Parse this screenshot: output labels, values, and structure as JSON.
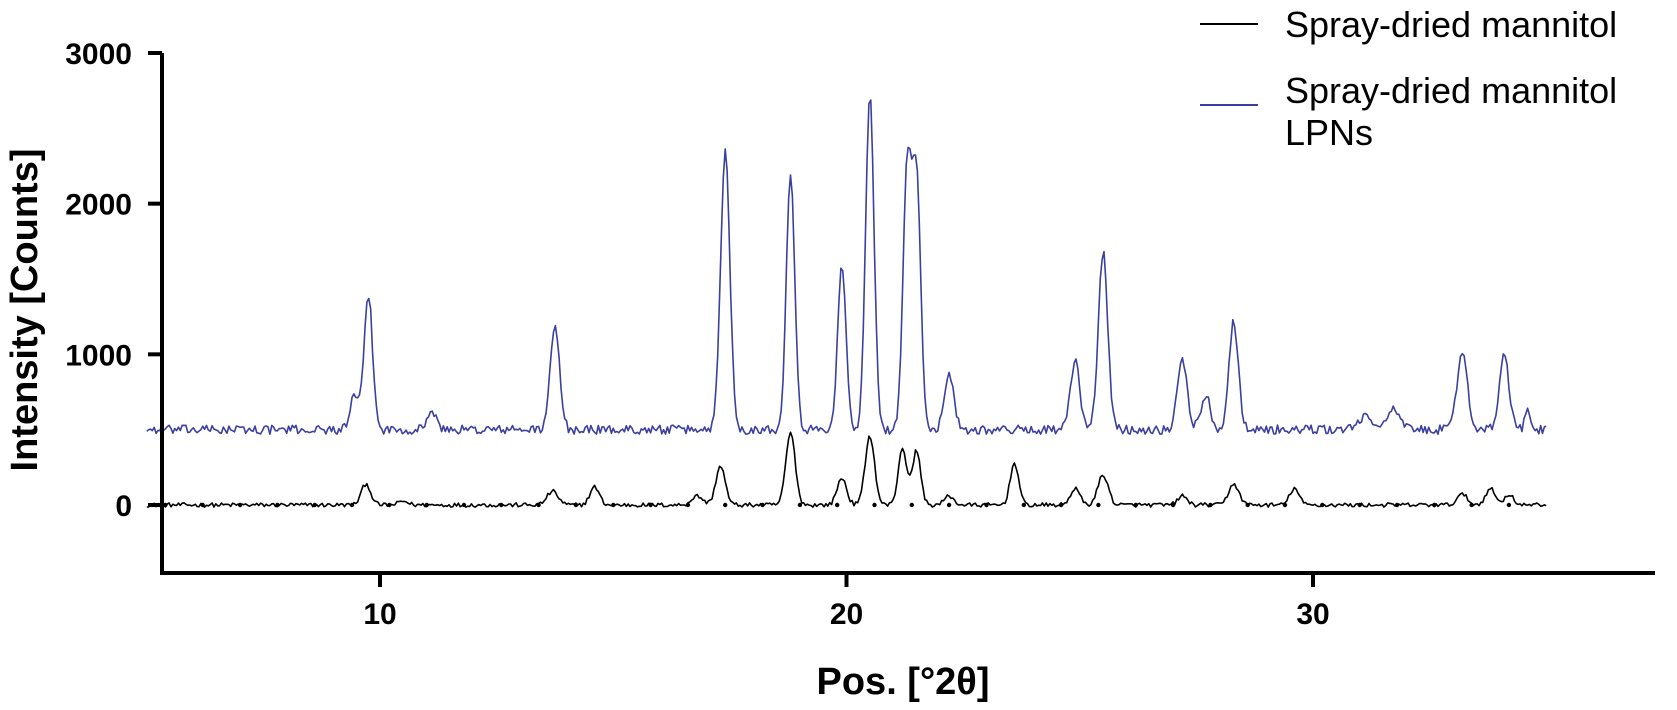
{
  "chart_data": {
    "type": "line",
    "title": "",
    "xlabel": "Pos. [°2θ]",
    "ylabel": "Intensity [Counts]",
    "xlim": [
      5,
      35
    ],
    "ylim": [
      -200,
      3000
    ],
    "xticks": [
      10,
      20,
      30
    ],
    "yticks": [
      0,
      1000,
      2000,
      3000
    ],
    "grid": false,
    "legend": "top-right",
    "colors": {
      "blue": "#3b3fa0",
      "black": "#000000"
    },
    "series": [
      {
        "name": "Spray-dried mannitol",
        "color": "#000000",
        "baseline": 0,
        "noise": 14,
        "peaks": [
          [
            9.7,
            140,
            0.1
          ],
          [
            10.5,
            25,
            0.1
          ],
          [
            13.7,
            90,
            0.12
          ],
          [
            14.6,
            120,
            0.1
          ],
          [
            16.8,
            60,
            0.12
          ],
          [
            17.3,
            260,
            0.1
          ],
          [
            18.8,
            480,
            0.1
          ],
          [
            19.9,
            180,
            0.1
          ],
          [
            20.5,
            460,
            0.1
          ],
          [
            21.2,
            380,
            0.09
          ],
          [
            21.5,
            360,
            0.09
          ],
          [
            22.2,
            60,
            0.1
          ],
          [
            23.6,
            280,
            0.09
          ],
          [
            24.9,
            110,
            0.1
          ],
          [
            25.5,
            200,
            0.11
          ],
          [
            27.2,
            60,
            0.1
          ],
          [
            28.3,
            140,
            0.11
          ],
          [
            29.6,
            110,
            0.1
          ],
          [
            33.2,
            70,
            0.11
          ],
          [
            33.8,
            110,
            0.1
          ],
          [
            34.2,
            70,
            0.1
          ]
        ]
      },
      {
        "name": "Spray-dried mannitol LPNs",
        "color": "#3b3fa0",
        "baseline": 500,
        "noise": 30,
        "peaks": [
          [
            9.45,
            220,
            0.09
          ],
          [
            9.75,
            900,
            0.09
          ],
          [
            11.1,
            120,
            0.1
          ],
          [
            13.75,
            680,
            0.1
          ],
          [
            17.4,
            1840,
            0.1
          ],
          [
            18.8,
            1720,
            0.09
          ],
          [
            19.9,
            1080,
            0.09
          ],
          [
            20.5,
            2220,
            0.09
          ],
          [
            21.3,
            1700,
            0.09
          ],
          [
            21.5,
            1650,
            0.09
          ],
          [
            22.2,
            380,
            0.1
          ],
          [
            24.9,
            450,
            0.1
          ],
          [
            25.5,
            1180,
            0.1
          ],
          [
            27.2,
            480,
            0.1
          ],
          [
            27.7,
            230,
            0.1
          ],
          [
            28.3,
            720,
            0.1
          ],
          [
            31.1,
            80,
            0.15
          ],
          [
            31.7,
            130,
            0.15
          ],
          [
            33.2,
            520,
            0.11
          ],
          [
            34.1,
            500,
            0.1
          ],
          [
            34.6,
            130,
            0.06
          ]
        ]
      }
    ],
    "zero_line": {
      "style": "dotted",
      "y": 0,
      "step": 0.8
    }
  }
}
